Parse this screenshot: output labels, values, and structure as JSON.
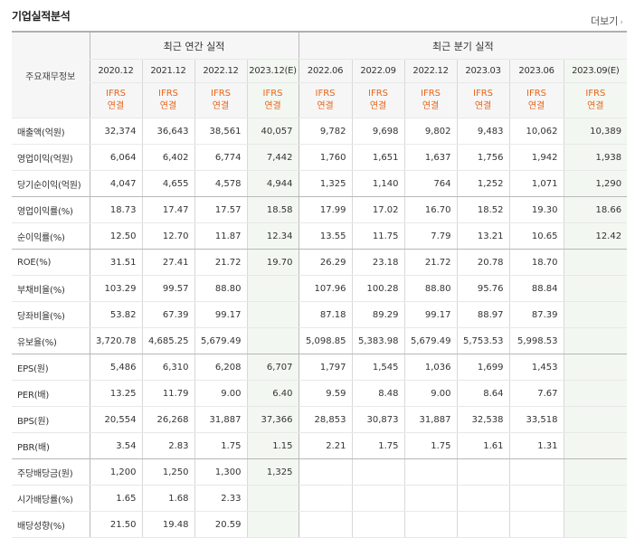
{
  "section_title": "기업실적분석",
  "more_label": "더보기",
  "more_icon": "chevron-right-icon",
  "header": {
    "row_label": "주요재무정보",
    "annual_group": "최근 연간 실적",
    "quarter_group": "최근 분기 실적",
    "periods": [
      "2020.12",
      "2021.12",
      "2022.12",
      "2023.12(E)",
      "2022.06",
      "2022.09",
      "2022.12",
      "2023.03",
      "2023.06",
      "2023.09(E)"
    ],
    "ifrs": "IFRS",
    "basis": "연결"
  },
  "rows": [
    {
      "label": "매출액(억원)",
      "values": [
        "32,374",
        "36,643",
        "38,561",
        "40,057",
        "9,782",
        "9,698",
        "9,802",
        "9,483",
        "10,062",
        "10,389"
      ]
    },
    {
      "label": "영업이익(억원)",
      "values": [
        "6,064",
        "6,402",
        "6,774",
        "7,442",
        "1,760",
        "1,651",
        "1,637",
        "1,756",
        "1,942",
        "1,938"
      ]
    },
    {
      "label": "당기순이익(억원)",
      "values": [
        "4,047",
        "4,655",
        "4,578",
        "4,944",
        "1,325",
        "1,140",
        "764",
        "1,252",
        "1,071",
        "1,290"
      ]
    },
    {
      "label": "영업이익률(%)",
      "values": [
        "18.73",
        "17.47",
        "17.57",
        "18.58",
        "17.99",
        "17.02",
        "16.70",
        "18.52",
        "19.30",
        "18.66"
      ]
    },
    {
      "label": "순이익률(%)",
      "values": [
        "12.50",
        "12.70",
        "11.87",
        "12.34",
        "13.55",
        "11.75",
        "7.79",
        "13.21",
        "10.65",
        "12.42"
      ]
    },
    {
      "label": "ROE(%)",
      "values": [
        "31.51",
        "27.41",
        "21.72",
        "19.70",
        "26.29",
        "23.18",
        "21.72",
        "20.78",
        "18.70",
        ""
      ]
    },
    {
      "label": "부채비율(%)",
      "values": [
        "103.29",
        "99.57",
        "88.80",
        "",
        "107.96",
        "100.28",
        "88.80",
        "95.76",
        "88.84",
        ""
      ]
    },
    {
      "label": "당좌비율(%)",
      "values": [
        "53.82",
        "67.39",
        "99.17",
        "",
        "87.18",
        "89.29",
        "99.17",
        "88.97",
        "87.39",
        ""
      ]
    },
    {
      "label": "유보율(%)",
      "values": [
        "3,720.78",
        "4,685.25",
        "5,679.49",
        "",
        "5,098.85",
        "5,383.98",
        "5,679.49",
        "5,753.53",
        "5,998.53",
        ""
      ]
    },
    {
      "label": "EPS(원)",
      "values": [
        "5,486",
        "6,310",
        "6,208",
        "6,707",
        "1,797",
        "1,545",
        "1,036",
        "1,699",
        "1,453",
        ""
      ]
    },
    {
      "label": "PER(배)",
      "values": [
        "13.25",
        "11.79",
        "9.00",
        "6.40",
        "9.59",
        "8.48",
        "9.00",
        "8.64",
        "7.67",
        ""
      ]
    },
    {
      "label": "BPS(원)",
      "values": [
        "20,554",
        "26,268",
        "31,887",
        "37,366",
        "28,853",
        "30,873",
        "31,887",
        "32,538",
        "33,518",
        ""
      ]
    },
    {
      "label": "PBR(배)",
      "values": [
        "3.54",
        "2.83",
        "1.75",
        "1.15",
        "2.21",
        "1.75",
        "1.75",
        "1.61",
        "1.31",
        ""
      ]
    },
    {
      "label": "주당배당금(원)",
      "values": [
        "1,200",
        "1,250",
        "1,300",
        "1,325",
        "",
        "",
        "",
        "",
        "",
        ""
      ]
    },
    {
      "label": "시가배당률(%)",
      "values": [
        "1.65",
        "1.68",
        "2.33",
        "",
        "",
        "",
        "",
        "",
        "",
        ""
      ]
    },
    {
      "label": "배당성향(%)",
      "values": [
        "21.50",
        "19.48",
        "20.59",
        "",
        "",
        "",
        "",
        "",
        "",
        ""
      ]
    }
  ]
}
